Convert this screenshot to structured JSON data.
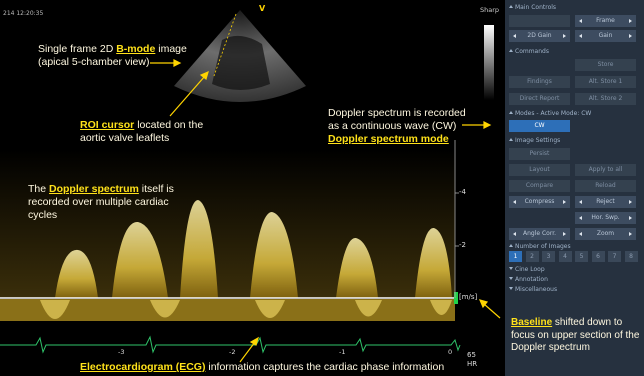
{
  "status_bar": {
    "timestamp": "214 12:20:35",
    "probe_marker": "V",
    "map_label": "Sharp"
  },
  "annotations": {
    "b_mode": {
      "before": "Single frame 2D",
      "key": "B-mode",
      "after": "image (apical 5-chamber view)"
    },
    "roi": {
      "key": "ROI cursor",
      "after": "located on the aortic valve leaflets"
    },
    "cw_mode": {
      "before": "Doppler spectrum is recorded as a continuous wave (CW)",
      "key": "Doppler spectrum mode"
    },
    "spectrum": {
      "before": "The",
      "key": "Doppler spectrum",
      "after": "itself is recorded over multiple cardiac cycles"
    },
    "baseline": {
      "key": "Baseline",
      "after": "shifted down to focus on upper section of the Doppler spectrum"
    },
    "ecg": {
      "key": "Electrocardiogram (ECG)",
      "after": "information captures the cardiac phase information"
    }
  },
  "velocity_scale": {
    "ticks": [
      "-4",
      "-2"
    ],
    "unit": "[m/s]"
  },
  "time_scale": [
    "-3",
    "-2",
    "-1",
    "0"
  ],
  "heart_rate": {
    "value": "65",
    "unit": "HR"
  },
  "panel": {
    "main_controls": {
      "title": "Main Controls",
      "controls": [
        "Frame",
        "2D Gain",
        "Gain"
      ]
    },
    "commands": {
      "title": "Commands",
      "buttons": [
        "Store",
        "Findings",
        "Alt. Store 1",
        "Direct Report",
        "Alt. Store 2"
      ]
    },
    "modes": {
      "title": "Modes - Active Mode: CW",
      "buttons": [
        "CW"
      ]
    },
    "image_settings": {
      "title": "Image Settings",
      "buttons": [
        "Persist",
        "Layout",
        "Apply to all",
        "Compare",
        "Reload",
        "Compress",
        "Reject",
        "Hor. Swp.",
        "Angle Corr.",
        "Zoom"
      ]
    },
    "number_of_images": {
      "title": "Number of Images",
      "buttons": [
        "1",
        "2",
        "3",
        "4",
        "5",
        "6",
        "7",
        "8"
      ]
    },
    "collapsed": [
      "Cine Loop",
      "Annotation",
      "Miscellaneous"
    ]
  }
}
